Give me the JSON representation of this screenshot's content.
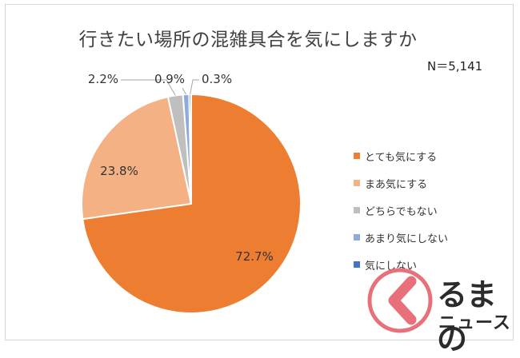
{
  "chart_data": {
    "type": "pie",
    "title": "行きたい場所の混雑具合を気にしますか",
    "sample_size": "N＝5,141",
    "categories": [
      "とても気にする",
      "まあ気にする",
      "どちらでもない",
      "あまり気にしない",
      "気にしない"
    ],
    "values": [
      72.7,
      23.8,
      2.2,
      0.9,
      0.3
    ],
    "labels": [
      "72.7%",
      "23.8%",
      "2.2%",
      "0.9%",
      "0.3%"
    ],
    "colors": [
      "#ED7D31",
      "#F4B183",
      "#BFBFBF",
      "#8FAADC",
      "#4472C4"
    ],
    "start": "top",
    "direction": "clockwise",
    "legend_position": "right"
  },
  "logo": {
    "line1": "るまの",
    "line2": "ニュース"
  }
}
